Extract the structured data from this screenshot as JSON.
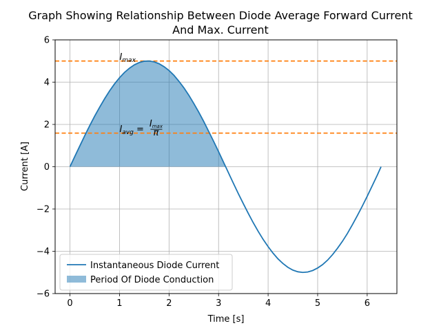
{
  "chart_data": {
    "type": "line",
    "title_line1": "Graph Showing Relationship Between Diode Average Forward Current",
    "title_line2": "And Max. Current",
    "xlabel": "Time [s]",
    "ylabel": "Current [A]",
    "xlim": [
      -0.3,
      6.6
    ],
    "ylim": [
      -6,
      6
    ],
    "xticks": [
      0,
      1,
      2,
      3,
      4,
      5,
      6
    ],
    "yticks": [
      -6,
      -4,
      -2,
      0,
      2,
      4,
      6
    ],
    "xtick_labels": [
      "0",
      "1",
      "2",
      "3",
      "4",
      "5",
      "6"
    ],
    "ytick_labels": [
      "−6",
      "−4",
      "−2",
      "0",
      "2",
      "4",
      "6"
    ],
    "grid": true,
    "legend_position": "lower-left",
    "series": [
      {
        "name": "Instantaneous Diode Current",
        "kind": "line",
        "color": "#1f77b4",
        "x": [
          0,
          0.1,
          0.2,
          0.3,
          0.4,
          0.5,
          0.6,
          0.7,
          0.8,
          0.9,
          1.0,
          1.1,
          1.2,
          1.3,
          1.4,
          1.5,
          1.6,
          1.7,
          1.8,
          1.9,
          2.0,
          2.1,
          2.2,
          2.3,
          2.4,
          2.5,
          2.6,
          2.7,
          2.8,
          2.9,
          3.0,
          3.1,
          3.2,
          3.3,
          3.4,
          3.5,
          3.6,
          3.7,
          3.8,
          3.9,
          4.0,
          4.1,
          4.2,
          4.3,
          4.4,
          4.5,
          4.6,
          4.7,
          4.8,
          4.9,
          5.0,
          5.1,
          5.2,
          5.3,
          5.4,
          5.5,
          5.6,
          5.7,
          5.8,
          5.9,
          6.0,
          6.1,
          6.2,
          6.28
        ],
        "y": [
          0,
          0.5,
          0.99,
          1.48,
          1.95,
          2.4,
          2.82,
          3.22,
          3.59,
          3.92,
          4.21,
          4.46,
          4.66,
          4.82,
          4.93,
          4.99,
          5.0,
          4.96,
          4.87,
          4.73,
          4.55,
          4.32,
          4.04,
          3.73,
          3.38,
          2.99,
          2.58,
          2.14,
          1.67,
          1.2,
          0.71,
          0.21,
          -0.29,
          -0.79,
          -1.28,
          -1.75,
          -2.21,
          -2.65,
          -3.06,
          -3.44,
          -3.78,
          -4.09,
          -4.36,
          -4.58,
          -4.76,
          -4.89,
          -4.97,
          -5.0,
          -4.98,
          -4.91,
          -4.79,
          -4.63,
          -4.42,
          -4.16,
          -3.86,
          -3.53,
          -3.16,
          -2.75,
          -2.32,
          -1.87,
          -1.4,
          -0.91,
          -0.42,
          0
        ]
      },
      {
        "name": "Period Of Diode Conduction",
        "kind": "area",
        "color": "#1f77b4",
        "x": [
          0,
          0.1,
          0.2,
          0.3,
          0.4,
          0.5,
          0.6,
          0.7,
          0.8,
          0.9,
          1.0,
          1.1,
          1.2,
          1.3,
          1.4,
          1.5,
          1.6,
          1.7,
          1.8,
          1.9,
          2.0,
          2.1,
          2.2,
          2.3,
          2.4,
          2.5,
          2.6,
          2.7,
          2.8,
          2.9,
          3.0,
          3.1,
          3.14
        ],
        "y": [
          0,
          0.5,
          0.99,
          1.48,
          1.95,
          2.4,
          2.82,
          3.22,
          3.59,
          3.92,
          4.21,
          4.46,
          4.66,
          4.82,
          4.93,
          4.99,
          5.0,
          4.96,
          4.87,
          4.73,
          4.55,
          4.32,
          4.04,
          3.73,
          3.38,
          2.99,
          2.58,
          2.14,
          1.67,
          1.2,
          0.71,
          0.21,
          0
        ]
      }
    ],
    "reference_lines": [
      {
        "y": 5.0,
        "color": "#ff7f0e",
        "style": "dashed"
      },
      {
        "y": 1.59,
        "color": "#ff7f0e",
        "style": "dashed"
      }
    ],
    "annotations": [
      {
        "x": 1.0,
        "y": 5.05,
        "label": "I",
        "sub": "max"
      },
      {
        "x": 1.0,
        "y": 1.64,
        "label": "I",
        "sub": "avg",
        "eq": " = ",
        "frac_num": "I",
        "frac_num_sub": "max",
        "frac_den": "π"
      }
    ]
  }
}
